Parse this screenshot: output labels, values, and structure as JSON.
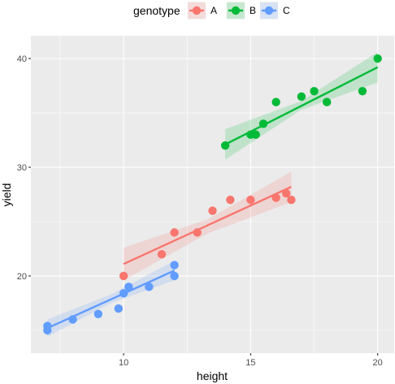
{
  "chart_data": {
    "type": "scatter",
    "xlabel": "height",
    "ylabel": "yield",
    "xlim": [
      6.35,
      20.65
    ],
    "ylim": [
      12.9,
      42.1
    ],
    "x_ticks": [
      10,
      15,
      20
    ],
    "y_ticks": [
      20,
      30,
      40
    ],
    "x_minor": [
      7.5,
      12.5,
      17.5
    ],
    "y_minor": [
      15,
      25,
      35
    ],
    "grid": true,
    "legend": {
      "title": "genotype",
      "position": "top",
      "entries": [
        {
          "label": "A",
          "color": "#F8766D"
        },
        {
          "label": "B",
          "color": "#00BA38"
        },
        {
          "label": "C",
          "color": "#619CFF"
        }
      ]
    },
    "series": [
      {
        "name": "A",
        "color": "#F8766D",
        "points": [
          [
            10,
            20
          ],
          [
            11.5,
            22
          ],
          [
            12,
            24
          ],
          [
            12.9,
            24
          ],
          [
            13.5,
            26
          ],
          [
            14.2,
            27
          ],
          [
            15,
            27
          ],
          [
            16,
            27.2
          ],
          [
            16.4,
            27.6
          ],
          [
            16.6,
            27
          ]
        ],
        "fit": [
          [
            10,
            21.1
          ],
          [
            16.6,
            28.2
          ]
        ],
        "band": {
          "lower": [
            [
              10,
              19.6
            ],
            [
              13.3,
              23.9
            ],
            [
              16.6,
              26.8
            ]
          ],
          "upper": [
            [
              10,
              22.6
            ],
            [
              13.3,
              25.2
            ],
            [
              16.6,
              29.6
            ]
          ]
        }
      },
      {
        "name": "B",
        "color": "#00BA38",
        "points": [
          [
            14,
            32
          ],
          [
            15,
            33
          ],
          [
            15.2,
            33
          ],
          [
            15.5,
            34
          ],
          [
            16,
            36
          ],
          [
            17,
            36.5
          ],
          [
            17.5,
            37
          ],
          [
            18,
            36
          ],
          [
            19.4,
            37
          ],
          [
            20,
            40
          ]
        ],
        "fit": [
          [
            14,
            32.1
          ],
          [
            20,
            39.2
          ]
        ],
        "band": {
          "lower": [
            [
              14,
              30.7
            ],
            [
              17,
              35.3
            ],
            [
              20,
              37.8
            ]
          ],
          "upper": [
            [
              14,
              33.5
            ],
            [
              17,
              36.1
            ],
            [
              20,
              40.6
            ]
          ]
        }
      },
      {
        "name": "C",
        "color": "#619CFF",
        "points": [
          [
            7,
            15
          ],
          [
            7,
            15.4
          ],
          [
            8,
            16
          ],
          [
            9,
            16.5
          ],
          [
            9.8,
            17
          ],
          [
            10,
            18.4
          ],
          [
            10.2,
            19
          ],
          [
            11,
            19
          ],
          [
            12,
            20
          ],
          [
            12,
            21
          ]
        ],
        "fit": [
          [
            7,
            15.2
          ],
          [
            12,
            20.5
          ]
        ],
        "band": {
          "lower": [
            [
              7,
              14.4
            ],
            [
              9.5,
              17.5
            ],
            [
              12,
              19.6
            ]
          ],
          "upper": [
            [
              7,
              16.0
            ],
            [
              9.5,
              18.3
            ],
            [
              12,
              21.4
            ]
          ]
        }
      }
    ]
  }
}
